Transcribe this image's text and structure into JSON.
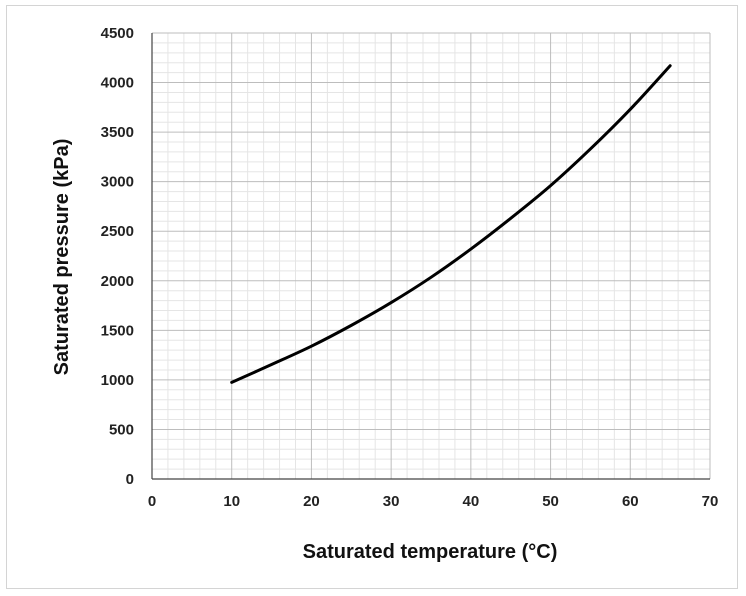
{
  "chart_data": {
    "type": "line",
    "title": "",
    "xlabel": "Saturated temperature (°C)",
    "ylabel": "Saturated pressure (kPa)",
    "xlim": [
      0,
      70
    ],
    "ylim": [
      0,
      4500
    ],
    "x_ticks": [
      "0",
      "10",
      "20",
      "30",
      "40",
      "50",
      "60",
      "70"
    ],
    "y_ticks": [
      "0",
      "500",
      "1000",
      "1500",
      "2000",
      "2500",
      "3000",
      "3500",
      "4000",
      "4500"
    ],
    "grid": true,
    "legend": "none",
    "colors": {
      "line": "#000000",
      "major_grid": "#bdbdbd",
      "minor_grid": "#e5e5e5",
      "axis": "#444444"
    },
    "series": [
      {
        "x": [
          10,
          15,
          20,
          25,
          30,
          35,
          40,
          45,
          50,
          55,
          60,
          65
        ],
        "values": [
          975,
          1155,
          1340,
          1550,
          1780,
          2035,
          2320,
          2630,
          2960,
          3330,
          3730,
          4170
        ]
      }
    ]
  }
}
